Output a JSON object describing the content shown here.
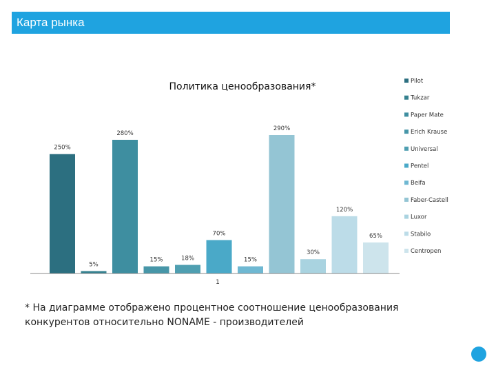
{
  "header": {
    "title": "Карта рынка"
  },
  "chart_data": {
    "type": "bar",
    "title": "Политика ценообразования*",
    "categories": [
      "1"
    ],
    "ylim": [
      0,
      290
    ],
    "series": [
      {
        "name": "Pilot",
        "values": [
          250
        ],
        "label": "250%",
        "color": "#2c6f80"
      },
      {
        "name": "Tukzar",
        "values": [
          5
        ],
        "label": "5%",
        "color": "#35818f"
      },
      {
        "name": "Paper Mate",
        "values": [
          280
        ],
        "label": "280%",
        "color": "#3e8ea0"
      },
      {
        "name": "Erich Krause",
        "values": [
          15
        ],
        "label": "15%",
        "color": "#4796a8"
      },
      {
        "name": "Universal",
        "values": [
          18
        ],
        "label": "18%",
        "color": "#4f9fb1"
      },
      {
        "name": "Pentel",
        "values": [
          70
        ],
        "label": "70%",
        "color": "#4aa9c8"
      },
      {
        "name": "Beifa",
        "values": [
          15
        ],
        "label": "15%",
        "color": "#6fb8d2"
      },
      {
        "name": "Faber-Castell",
        "values": [
          290
        ],
        "label": "290%",
        "color": "#94c5d4"
      },
      {
        "name": "Luxor",
        "values": [
          30
        ],
        "label": "30%",
        "color": "#a9d3e0"
      },
      {
        "name": "Stabilo",
        "values": [
          120
        ],
        "label": "120%",
        "color": "#bcdce8"
      },
      {
        "name": "Centropen",
        "values": [
          65
        ],
        "label": "65%",
        "color": "#cde4ec"
      }
    ]
  },
  "footnote": "* На диаграмме отображено процентное соотношение ценообразования конкурентов  относительно NONAME - производителей"
}
